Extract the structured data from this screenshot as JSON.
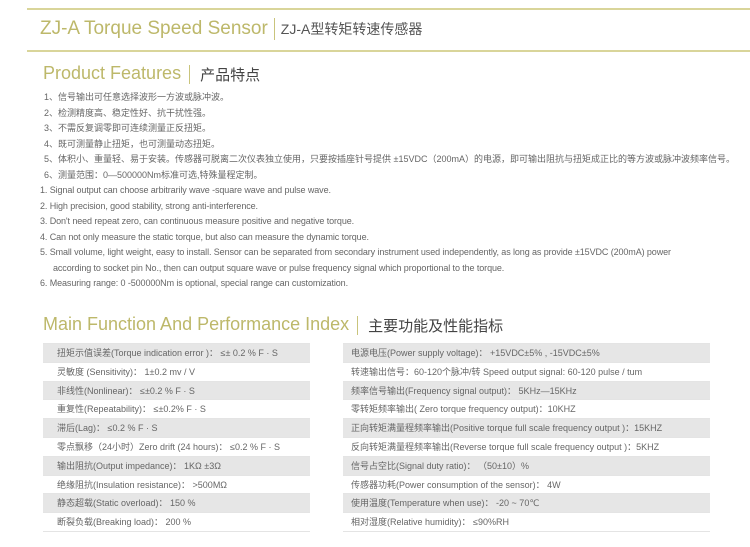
{
  "header": {
    "title_en": "ZJ-A Torque Speed Sensor",
    "title_cn": "ZJ-A型转矩转速传感器"
  },
  "features": {
    "title_en": "Product Features",
    "title_cn": "产品特点",
    "items_cn": [
      "1、信号输出可任意选择波形一方波或脉冲波。",
      "2、检测精度高、稳定性好、抗干扰性强。",
      "3、不需反复调零即可连续测量正反扭矩。",
      "4、既可测量静止扭矩，也可测量动态扭矩。",
      "5、体积小、重量轻、易于安装。传感器可脱离二次仪表独立使用，只要按插座针号提供 ±15VDC（200mA）的电源，即可输出阻抗与扭矩成正比的等方波或脉冲波频率信号。",
      "6、测量范围：0—500000Nm标准可选,特殊量程定制。"
    ],
    "items_en": [
      "1. Signal output can choose arbitrarily wave -square wave and pulse wave.",
      "2. High precision, good stability, strong anti-interference.",
      "3. Don't need repeat zero, can continuous measure positive and negative torque.",
      "4. Can not only measure the static torque, but also can measure the dynamic torque.",
      "5. Small volume, light weight, easy to install. Sensor can be separated from secondary instrument used independently, as long as provide ±15VDC (200mA) power",
      "according to socket pin No., then can output square wave or pulse frequency signal which proportional to the torque.",
      "6.  Measuring range: 0 -500000Nm is optional, special range  can customization."
    ]
  },
  "performance": {
    "title_en": "Main Function And Performance Index",
    "title_cn": "主要功能及性能指标",
    "left": [
      "扭矩示值误差(Torque indication error )： ≤± 0.2 % F · S",
      "灵敏度 (Sensitivity)： 1±0.2 mv / V",
      "非线性(Nonlinear)： ≤±0.2 % F · S",
      "重复性(Repeatability)： ≤±0.2% F · S",
      "滞后(Lag)： ≤0.2 % F · S",
      "零点飘移（24小时）Zero drift (24 hours)： ≤0.2 % F · S",
      "输出阻抗(Output impedance)： 1KΩ ±3Ω",
      "绝缘阻抗(Insulation resistance)： >500MΩ",
      "静态超载(Static overload)： 150 %",
      "断裂负载(Breaking load)： 200 %"
    ],
    "right": [
      "电源电压(Power supply voltage)： +15VDC±5% , -15VDC±5%",
      "转速输出信号：60-120个脉冲/转   Speed output signal: 60-120 pulse / tum",
      "频率信号输出(Frequency signal output)： 5KHz—15KHz",
      "零转矩频率输出( Zero torque frequency output)：10KHZ",
      "正向转矩满量程频率输出(Positive torque full scale frequency output )：15KHZ",
      "反向转矩满量程频率输出(Reverse torque full scale frequency output )：5KHZ",
      "信号占空比(Signal duty ratio)： （50±10）%",
      "传感器功耗(Power consumption of the sensor)： 4W",
      "使用温度(Temperature when use)： -20 ~ 70℃",
      "相对湿度(Relative humidity)： ≤90%RH"
    ]
  },
  "colors": {
    "accent": "#bdb86a",
    "rule": "#d9d59a",
    "row_gray": "#e6e6e6"
  }
}
